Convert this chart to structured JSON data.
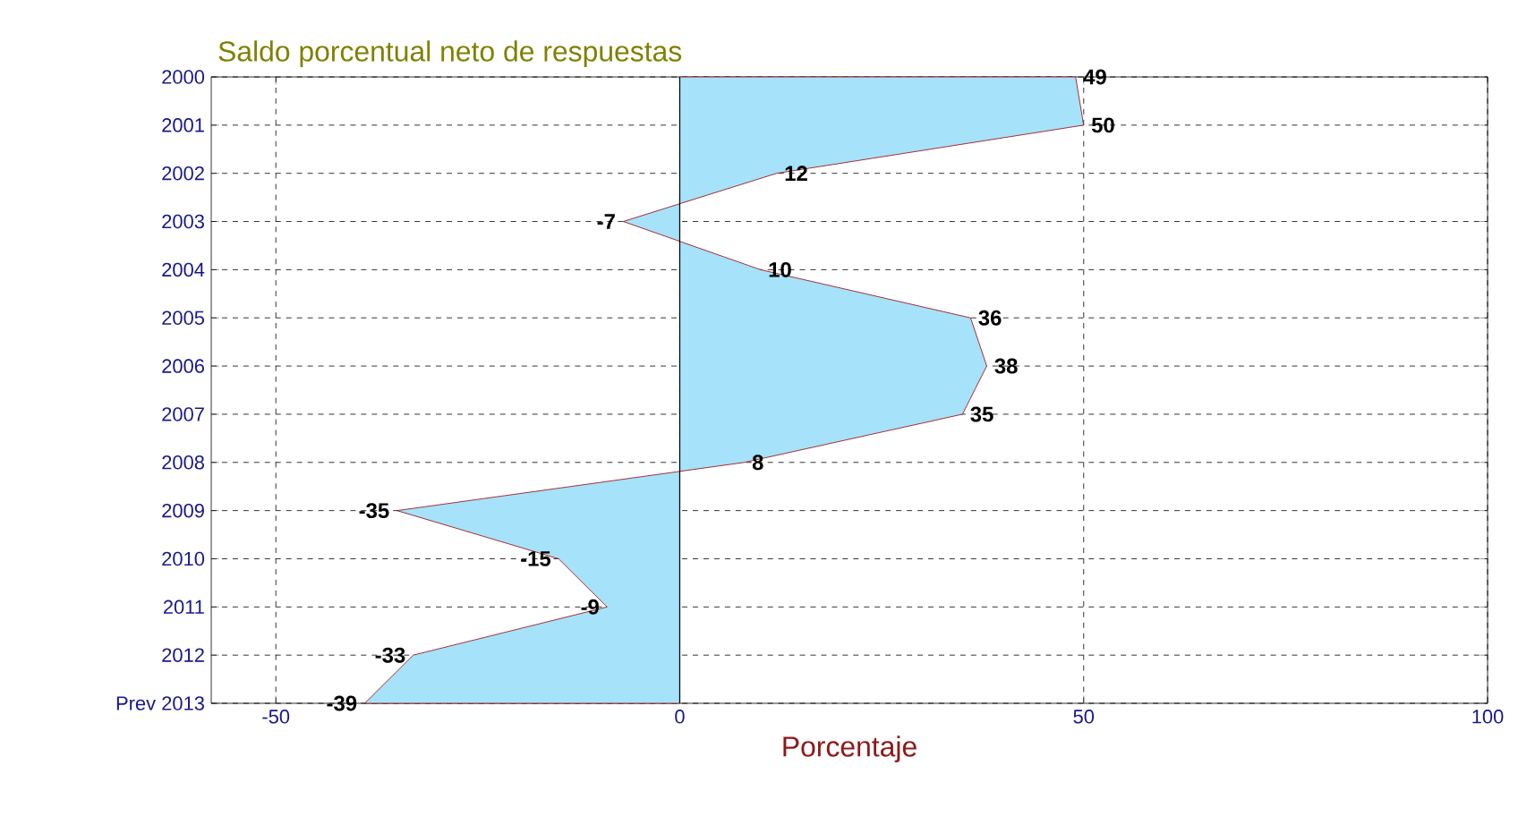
{
  "chart_data": {
    "type": "area",
    "orientation": "horizontal",
    "title": "Saldo porcentual neto de respuestas",
    "xlabel": "Porcentaje",
    "categories": [
      "2000",
      "2001",
      "2002",
      "2003",
      "2004",
      "2005",
      "2006",
      "2007",
      "2008",
      "2009",
      "2010",
      "2011",
      "2012",
      "Prev 2013"
    ],
    "values": [
      49,
      50,
      12,
      -7,
      10,
      36,
      38,
      35,
      8,
      -35,
      -15,
      -9,
      -33,
      -39
    ],
    "color": "#990000",
    "xlim": [
      -58,
      100
    ],
    "xticks": [
      -50,
      0,
      50,
      100
    ],
    "grid": true,
    "data_labels": true,
    "ref_lines": [
      {
        "axis": "x",
        "value": 0,
        "color": "#000000",
        "line_style": "solid"
      }
    ]
  }
}
